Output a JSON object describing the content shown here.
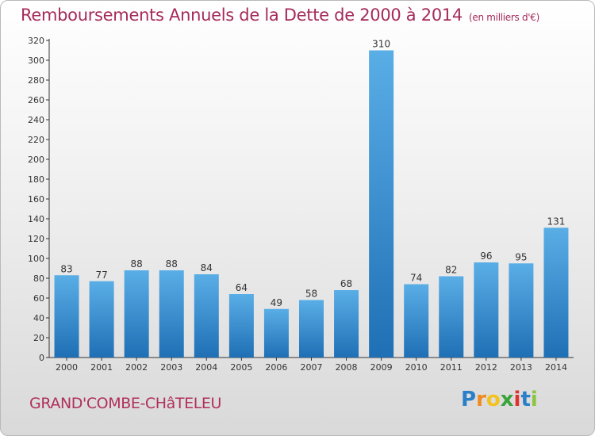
{
  "title": "Remboursements Annuels de la Dette de 2000 à 2014",
  "subtitle": "(en milliers d'€)",
  "commune": "GRAND'COMBE-CHâTELEU",
  "brand": {
    "letters": [
      "P",
      "r",
      "o",
      "x",
      "i",
      "t",
      "i"
    ],
    "colors": [
      "#2a7fc9",
      "#f08a1d",
      "#f3c21c",
      "#3aa33a",
      "#e0322c",
      "#2a7fc9",
      "#8bc53f"
    ]
  },
  "colors": {
    "bar_top": "#5aaee6",
    "bar_bottom": "#1f6fb5",
    "text": "#333333",
    "title": "#a52a5a"
  },
  "chart_data": {
    "type": "bar",
    "categories": [
      "2000",
      "2001",
      "2002",
      "2003",
      "2004",
      "2005",
      "2006",
      "2007",
      "2008",
      "2009",
      "2010",
      "2011",
      "2012",
      "2013",
      "2014"
    ],
    "values": [
      83,
      77,
      88,
      88,
      84,
      64,
      49,
      58,
      68,
      310,
      74,
      82,
      96,
      95,
      131
    ],
    "ylim": [
      0,
      320
    ],
    "yticks": [
      0,
      20,
      40,
      60,
      80,
      100,
      120,
      140,
      160,
      180,
      200,
      220,
      240,
      260,
      280,
      300,
      320
    ],
    "grid": false,
    "data_labels": true
  }
}
